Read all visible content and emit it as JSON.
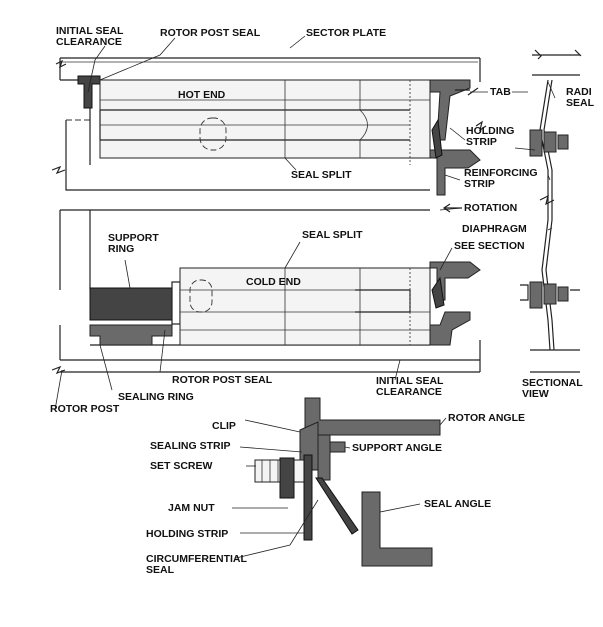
{
  "labels": {
    "initial_seal_clearance_top": [
      "INITIAL SEAL",
      "CLEARANCE"
    ],
    "rotor_post_seal_top": "ROTOR POST SEAL",
    "sector_plate": "SECTOR PLATE",
    "hot_end": "HOT END",
    "tab": "TAB",
    "radial_seal": [
      "RADI",
      "SEAL"
    ],
    "holding_strip_right": [
      "HOLDING",
      "STRIP"
    ],
    "reinforcing_strip": [
      "REINFORCING",
      "STRIP"
    ],
    "seal_split_top": "SEAL SPLIT",
    "rotation": "ROTATION",
    "diaphragm": "DIAPHRAGM",
    "support_ring": [
      "SUPPORT",
      "RING"
    ],
    "seal_split_bottom": "SEAL SPLIT",
    "see_section": "SEE SECTION",
    "cold_end": "COLD END",
    "rotor_post_seal_bottom": "ROTOR POST SEAL",
    "initial_seal_clearance_bottom": [
      "INITIAL SEAL",
      "CLEARANCE"
    ],
    "sectional_view": [
      "SECTIONAL",
      "VIEW"
    ],
    "sealing_ring": "SEALING RING",
    "rotor_post": "ROTOR POST",
    "clip": "CLIP",
    "rotor_angle": "ROTOR ANGLE",
    "sealing_strip": "SEALING STRIP",
    "support_angle": "SUPPORT ANGLE",
    "set_screw": "SET SCREW",
    "jam_nut": "JAM NUT",
    "seal_angle": "SEAL ANGLE",
    "holding_strip_bottom": "HOLDING STRIP",
    "circumferential_seal": [
      "CIRCUMFERENTIAL",
      "SEAL"
    ]
  }
}
